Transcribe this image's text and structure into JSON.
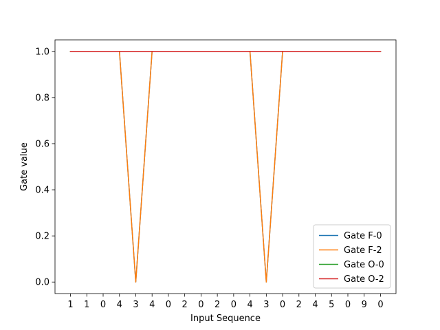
{
  "chart_data": {
    "type": "line",
    "title": "",
    "xlabel": "Input Sequence",
    "ylabel": "Gate value",
    "x": [
      0,
      1,
      2,
      3,
      4,
      5,
      6,
      7,
      8,
      9,
      10,
      11,
      12,
      13,
      14,
      15,
      16,
      17,
      18,
      19
    ],
    "xtick_labels": [
      "1",
      "1",
      "0",
      "4",
      "3",
      "4",
      "0",
      "2",
      "0",
      "2",
      "0",
      "4",
      "3",
      "0",
      "2",
      "4",
      "5",
      "0",
      "9",
      "0"
    ],
    "xlim": [
      -0.95,
      19.95
    ],
    "ylim": [
      -0.05,
      1.05
    ],
    "yticks": [
      0.0,
      0.2,
      0.4,
      0.6,
      0.8,
      1.0
    ],
    "ytick_labels": [
      "0.0",
      "0.2",
      "0.4",
      "0.6",
      "0.8",
      "1.0"
    ],
    "grid": false,
    "legend_position": "bottom-right",
    "series": [
      {
        "name": "Gate F-0",
        "color": "#1f77b4",
        "values": [
          1,
          1,
          1,
          1,
          0,
          1,
          1,
          1,
          1,
          1,
          1,
          1,
          0,
          1,
          1,
          1,
          1,
          1,
          1,
          1
        ]
      },
      {
        "name": "Gate F-2",
        "color": "#ff7f0e",
        "values": [
          1,
          1,
          1,
          1,
          0,
          1,
          1,
          1,
          1,
          1,
          1,
          1,
          0,
          1,
          1,
          1,
          1,
          1,
          1,
          1
        ]
      },
      {
        "name": "Gate O-0",
        "color": "#2ca02c",
        "values": [
          1,
          1,
          1,
          1,
          1,
          1,
          1,
          1,
          1,
          1,
          1,
          1,
          1,
          1,
          1,
          1,
          1,
          1,
          1,
          1
        ]
      },
      {
        "name": "Gate O-2",
        "color": "#d62728",
        "values": [
          1,
          1,
          1,
          1,
          1,
          1,
          1,
          1,
          1,
          1,
          1,
          1,
          1,
          1,
          1,
          1,
          1,
          1,
          1,
          1
        ]
      }
    ]
  }
}
